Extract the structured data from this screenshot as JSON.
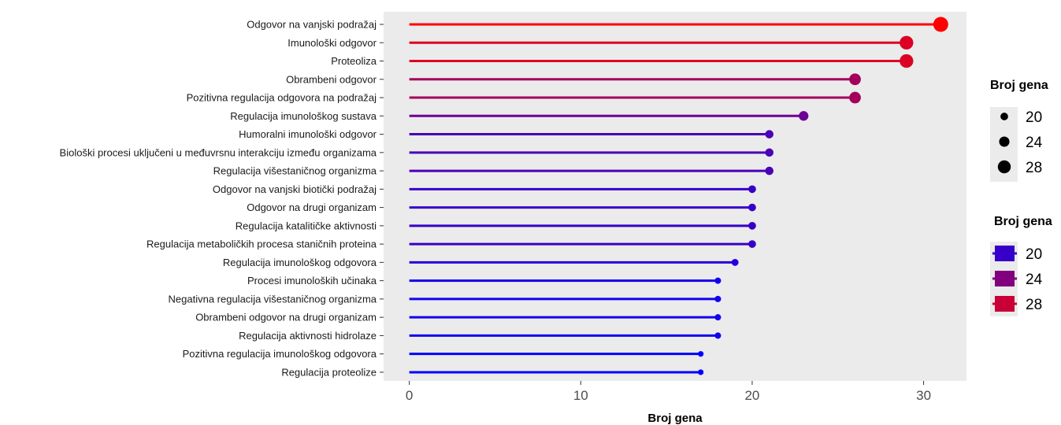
{
  "chart_data": {
    "type": "lollipop",
    "categories": [
      "Odgovor na vanjski podražaj",
      "Imunološki odgovor",
      "Proteoliza",
      "Obrambeni odgovor",
      "Pozitivna regulacija odgovora na podražaj",
      "Regulacija imunološkog sustava",
      "Humoralni imunološki odgovor",
      "Biološki procesi uključeni u međuvrsnu interakciju između organizama",
      "Regulacija višestaničnog organizma",
      "Odgovor na vanjski biotički podražaj",
      "Odgovor na drugi organizam",
      "Regulacija katalitičke aktivnosti",
      "Regulacija metaboličkih procesa staničnih proteina",
      "Regulacija imunološkog odgovora",
      "Procesi imunoloških učinaka",
      "Negativna regulacija višestaničnog organizma",
      "Obrambeni odgovor na drugi organizam",
      "Regulacija aktivnosti hidrolaze",
      "Pozitivna regulacija imunološkog odgovora",
      "Regulacija proteolize"
    ],
    "values": [
      31,
      29,
      29,
      26,
      26,
      23,
      21,
      21,
      21,
      20,
      20,
      20,
      20,
      19,
      18,
      18,
      18,
      18,
      17,
      17
    ],
    "xlabel": "Broj gena",
    "xlim": [
      -1.5,
      32.5
    ],
    "xticks": [
      0,
      10,
      20,
      30
    ],
    "xtick_labels": [
      "0",
      "10",
      "20",
      "30"
    ],
    "panel_background": "#ebebeb",
    "grid": false,
    "legend_position": "right",
    "color_scale": {
      "low": "#0000ff",
      "high": "#ff0000",
      "min": 17,
      "max": 31
    },
    "legends": [
      {
        "title": "Broj gena",
        "kind": "size",
        "entries": [
          "20",
          "24",
          "28"
        ],
        "values": [
          20,
          24,
          28
        ]
      },
      {
        "title": "Broj gena",
        "kind": "color",
        "entries": [
          "20",
          "24",
          "28"
        ],
        "values": [
          20,
          24,
          28
        ]
      }
    ]
  }
}
